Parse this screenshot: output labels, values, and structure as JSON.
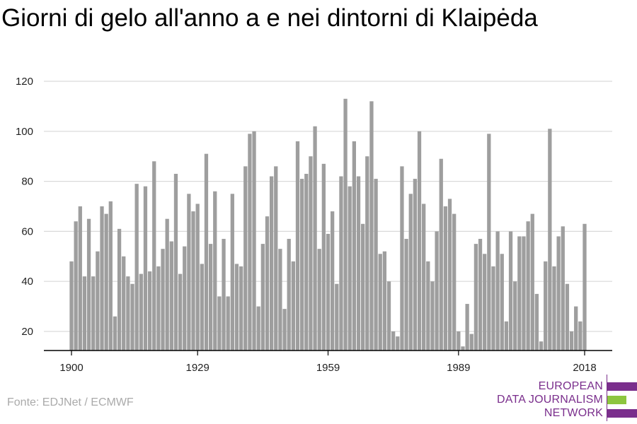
{
  "title": "Giorni di gelo all'anno a e nei dintorni di Klaipėda",
  "source": "Fonte: EDJNet / ECMWF",
  "logo": {
    "line1": "EUROPEAN",
    "line2": "DATA JOURNALISM",
    "line3": "NETWORK",
    "colors": {
      "purple": "#7a2e8c",
      "green": "#8dc63f"
    }
  },
  "colors": {
    "bar": "#9e9e9e",
    "grid": "#d9d9d9",
    "axis": "#000000"
  },
  "chart_data": {
    "type": "bar",
    "title": "Giorni di gelo all'anno a e nei dintorni di Klaipėda",
    "xlabel": "",
    "ylabel": "",
    "x": [
      1900,
      1901,
      1902,
      1903,
      1904,
      1905,
      1906,
      1907,
      1908,
      1909,
      1910,
      1911,
      1912,
      1913,
      1914,
      1915,
      1916,
      1917,
      1918,
      1919,
      1920,
      1921,
      1922,
      1923,
      1924,
      1925,
      1926,
      1927,
      1928,
      1929,
      1930,
      1931,
      1932,
      1933,
      1934,
      1935,
      1936,
      1937,
      1938,
      1939,
      1940,
      1941,
      1942,
      1943,
      1944,
      1945,
      1946,
      1947,
      1948,
      1949,
      1950,
      1951,
      1952,
      1953,
      1954,
      1955,
      1956,
      1957,
      1958,
      1959,
      1960,
      1961,
      1962,
      1963,
      1964,
      1965,
      1966,
      1967,
      1968,
      1969,
      1970,
      1971,
      1972,
      1973,
      1974,
      1975,
      1976,
      1977,
      1978,
      1979,
      1980,
      1981,
      1982,
      1983,
      1984,
      1985,
      1986,
      1987,
      1988,
      1989,
      1990,
      1991,
      1992,
      1993,
      1994,
      1995,
      1996,
      1997,
      1998,
      1999,
      2000,
      2001,
      2002,
      2003,
      2004,
      2005,
      2006,
      2007,
      2008,
      2009,
      2010,
      2011,
      2012,
      2013,
      2014,
      2015,
      2016,
      2017,
      2018
    ],
    "values": [
      48,
      64,
      70,
      42,
      65,
      42,
      52,
      70,
      67,
      72,
      26,
      61,
      50,
      42,
      39,
      79,
      43,
      78,
      44,
      88,
      46,
      53,
      65,
      56,
      83,
      43,
      54,
      75,
      68,
      71,
      47,
      91,
      55,
      76,
      34,
      57,
      34,
      75,
      47,
      46,
      86,
      99,
      100,
      30,
      55,
      66,
      82,
      86,
      53,
      29,
      57,
      48,
      96,
      81,
      83,
      90,
      102,
      53,
      87,
      59,
      68,
      39,
      82,
      113,
      78,
      96,
      82,
      63,
      90,
      112,
      81,
      51,
      52,
      40,
      20,
      18,
      86,
      57,
      75,
      81,
      100,
      71,
      48,
      40,
      60,
      89,
      70,
      73,
      67,
      20,
      14,
      31,
      19,
      55,
      57,
      51,
      99,
      46,
      60,
      51,
      24,
      60,
      40,
      58,
      58,
      64,
      67,
      35,
      16,
      48,
      101,
      46,
      58,
      62,
      39,
      20,
      30,
      24,
      63
    ],
    "xticks": [
      1900,
      1929,
      1959,
      1989,
      2018
    ],
    "yticks": [
      20,
      40,
      60,
      80,
      100,
      120
    ],
    "ylim": [
      12,
      120
    ],
    "grid": true,
    "legend": "none"
  }
}
